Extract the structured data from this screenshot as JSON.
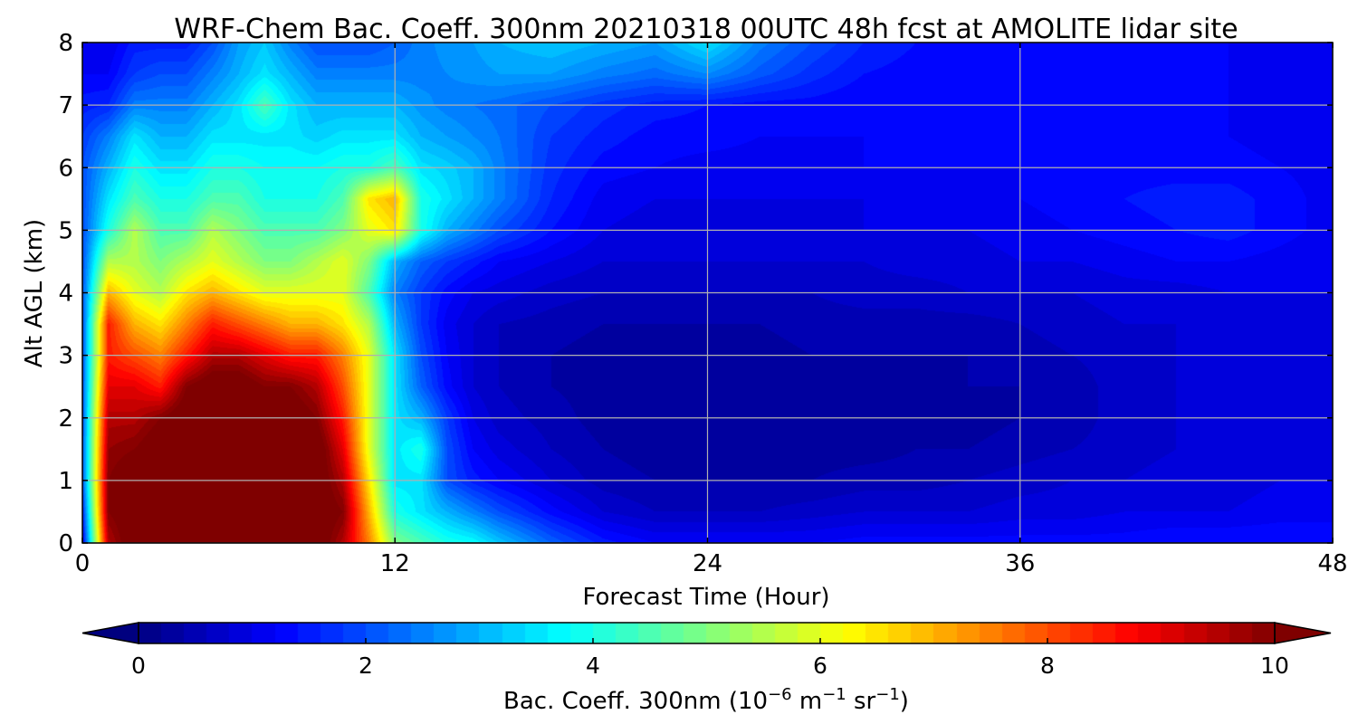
{
  "chart_data": {
    "type": "heatmap",
    "title": "WRF-Chem Bac. Coeff. 300nm  20210318 00UTC 48h fcst at AMOLITE lidar site",
    "xlabel": "Forecast Time (Hour)",
    "ylabel": "Alt AGL (km)",
    "xlim": [
      0,
      48
    ],
    "ylim": [
      0,
      8
    ],
    "xticks": [
      "0",
      "12",
      "24",
      "36",
      "48"
    ],
    "yticks": [
      "0",
      "1",
      "2",
      "3",
      "4",
      "5",
      "6",
      "7",
      "8"
    ],
    "grid": true,
    "colormap": "jet",
    "colorbar": {
      "orientation": "horizontal",
      "placement": "bottom",
      "range": [
        0,
        10
      ],
      "ticks": [
        "0",
        "2",
        "4",
        "6",
        "8",
        "10"
      ],
      "extend": "both",
      "label_main": "Bac. Coeff. 300nm  (10",
      "label_exp1": "−6",
      "label_mid1": " m",
      "label_exp2": "−1",
      "label_mid2": " sr",
      "label_exp3": "−1",
      "label_end": ")"
    },
    "x": [
      0,
      1,
      2,
      3,
      4,
      5,
      6,
      7,
      8,
      9,
      10,
      11,
      12,
      13,
      14,
      15,
      16,
      18,
      20,
      22,
      24,
      26,
      28,
      30,
      32,
      34,
      36,
      38,
      40,
      42,
      44,
      46,
      48
    ],
    "y": [
      0,
      0.5,
      1,
      1.5,
      2,
      2.5,
      3,
      3.5,
      4,
      4.5,
      5,
      5.5,
      6,
      6.5,
      7,
      7.5,
      8
    ],
    "z": [
      [
        1.0,
        9.5,
        10.5,
        10.5,
        10.5,
        10.5,
        10.5,
        10.5,
        10.5,
        10.5,
        9.5,
        7.5,
        5.0,
        4.5,
        4.0,
        3.8,
        3.2,
        2.2,
        1.5,
        1.2,
        1.2,
        1.2,
        1.2,
        1.3,
        1.3,
        1.3,
        1.3,
        1.3,
        1.3,
        1.4,
        1.4,
        1.4,
        1.4
      ],
      [
        1.5,
        10.0,
        10.5,
        10.5,
        10.5,
        10.5,
        10.5,
        10.5,
        10.5,
        10.5,
        10.0,
        7.0,
        4.0,
        3.5,
        3.0,
        2.5,
        2.0,
        1.3,
        0.8,
        0.6,
        0.6,
        0.6,
        0.7,
        0.8,
        0.8,
        0.8,
        0.9,
        0.9,
        1.0,
        1.0,
        1.0,
        1.1,
        1.1
      ],
      [
        2.0,
        10.0,
        10.5,
        10.5,
        10.5,
        10.5,
        10.5,
        10.5,
        10.5,
        10.5,
        9.5,
        6.5,
        3.5,
        3.5,
        2.0,
        1.5,
        1.2,
        0.8,
        0.5,
        0.4,
        0.4,
        0.4,
        0.4,
        0.5,
        0.5,
        0.6,
        0.7,
        0.8,
        0.8,
        0.9,
        0.9,
        1.0,
        1.0
      ],
      [
        2.0,
        9.8,
        10.0,
        10.5,
        10.5,
        10.5,
        10.5,
        10.5,
        10.5,
        10.5,
        9.0,
        6.0,
        3.5,
        4.0,
        2.0,
        1.2,
        0.9,
        0.6,
        0.4,
        0.3,
        0.3,
        0.3,
        0.3,
        0.3,
        0.4,
        0.4,
        0.5,
        0.6,
        0.7,
        0.8,
        0.9,
        0.9,
        1.0
      ],
      [
        2.0,
        9.5,
        9.5,
        10.0,
        10.5,
        10.5,
        10.5,
        10.5,
        10.5,
        10.0,
        8.5,
        6.0,
        3.5,
        3.0,
        1.8,
        1.0,
        0.7,
        0.5,
        0.3,
        0.2,
        0.2,
        0.2,
        0.2,
        0.2,
        0.3,
        0.3,
        0.4,
        0.5,
        0.7,
        0.8,
        0.9,
        0.9,
        1.0
      ],
      [
        2.0,
        9.0,
        9.0,
        8.5,
        10.0,
        10.5,
        10.5,
        10.0,
        10.0,
        9.5,
        8.0,
        6.0,
        3.5,
        2.2,
        1.3,
        0.8,
        0.6,
        0.4,
        0.3,
        0.3,
        0.2,
        0.2,
        0.3,
        0.3,
        0.3,
        0.4,
        0.4,
        0.5,
        0.7,
        0.8,
        0.9,
        0.9,
        1.0
      ],
      [
        2.0,
        8.5,
        8.0,
        7.5,
        8.5,
        9.5,
        9.5,
        9.0,
        8.5,
        8.5,
        7.5,
        6.0,
        3.5,
        2.0,
        1.2,
        0.8,
        0.6,
        0.4,
        0.3,
        0.3,
        0.3,
        0.3,
        0.4,
        0.4,
        0.4,
        0.4,
        0.5,
        0.6,
        0.7,
        0.8,
        0.9,
        0.9,
        1.0
      ],
      [
        2.0,
        8.5,
        7.0,
        6.5,
        7.5,
        8.5,
        8.0,
        7.5,
        7.0,
        7.0,
        6.5,
        5.5,
        3.0,
        1.8,
        1.1,
        0.8,
        0.6,
        0.5,
        0.4,
        0.4,
        0.4,
        0.4,
        0.5,
        0.5,
        0.5,
        0.5,
        0.6,
        0.7,
        0.8,
        0.8,
        0.9,
        0.9,
        1.0
      ],
      [
        2.0,
        7.0,
        6.0,
        5.5,
        6.5,
        7.0,
        6.5,
        6.0,
        6.0,
        6.0,
        6.0,
        4.5,
        2.5,
        1.8,
        1.3,
        1.0,
        0.9,
        0.7,
        0.6,
        0.6,
        0.6,
        0.6,
        0.6,
        0.7,
        0.7,
        0.8,
        0.8,
        0.8,
        0.9,
        0.9,
        1.0,
        1.0,
        1.0
      ],
      [
        2.0,
        5.5,
        5.5,
        5.0,
        5.5,
        6.0,
        5.5,
        5.0,
        5.0,
        5.5,
        6.0,
        5.0,
        3.0,
        2.2,
        1.8,
        1.5,
        1.2,
        1.0,
        0.8,
        0.8,
        0.8,
        0.8,
        0.8,
        0.8,
        0.9,
        0.9,
        1.0,
        1.0,
        1.1,
        1.2,
        1.2,
        1.1,
        1.0
      ],
      [
        2.0,
        4.0,
        5.5,
        4.5,
        4.5,
        5.5,
        5.0,
        4.5,
        4.5,
        4.5,
        5.0,
        6.0,
        6.5,
        4.0,
        3.0,
        2.5,
        2.0,
        1.4,
        1.0,
        0.9,
        0.9,
        0.9,
        0.9,
        1.0,
        1.0,
        1.0,
        1.1,
        1.2,
        1.3,
        1.4,
        1.5,
        1.3,
        1.1
      ],
      [
        2.0,
        3.5,
        4.5,
        4.0,
        4.0,
        4.5,
        4.5,
        4.0,
        4.0,
        4.0,
        4.5,
        6.5,
        7.0,
        4.0,
        3.5,
        3.0,
        2.5,
        1.6,
        1.1,
        1.0,
        1.0,
        1.0,
        1.0,
        1.0,
        1.1,
        1.1,
        1.2,
        1.3,
        1.4,
        1.5,
        1.5,
        1.3,
        1.1
      ],
      [
        2.0,
        3.0,
        4.0,
        3.5,
        3.5,
        4.0,
        4.0,
        3.8,
        3.8,
        3.8,
        4.0,
        4.0,
        4.5,
        3.5,
        3.3,
        3.0,
        2.5,
        1.7,
        1.3,
        1.2,
        1.1,
        1.1,
        1.1,
        1.2,
        1.2,
        1.2,
        1.2,
        1.3,
        1.3,
        1.3,
        1.3,
        1.2,
        1.1
      ],
      [
        1.8,
        2.5,
        3.5,
        3.0,
        3.0,
        3.5,
        3.5,
        3.5,
        3.5,
        3.3,
        3.5,
        3.5,
        3.5,
        3.0,
        2.8,
        2.6,
        2.4,
        1.8,
        1.5,
        1.3,
        1.3,
        1.2,
        1.2,
        1.2,
        1.2,
        1.2,
        1.2,
        1.2,
        1.2,
        1.2,
        1.2,
        1.1,
        1.1
      ],
      [
        1.5,
        1.6,
        2.5,
        2.5,
        2.5,
        3.0,
        3.5,
        4.5,
        3.5,
        3.0,
        3.0,
        3.0,
        3.0,
        2.7,
        2.5,
        2.4,
        2.3,
        2.0,
        1.7,
        1.5,
        1.4,
        1.3,
        1.3,
        1.2,
        1.2,
        1.2,
        1.2,
        1.2,
        1.2,
        1.2,
        1.2,
        1.1,
        1.1
      ],
      [
        1.2,
        1.2,
        1.8,
        2.0,
        2.0,
        2.5,
        3.0,
        3.5,
        3.0,
        2.5,
        2.5,
        2.5,
        2.5,
        2.5,
        2.6,
        2.7,
        2.8,
        2.8,
        2.5,
        2.3,
        2.6,
        2.1,
        1.7,
        1.4,
        1.3,
        1.2,
        1.2,
        1.2,
        1.2,
        1.2,
        1.2,
        1.1,
        1.1
      ],
      [
        1.0,
        1.0,
        1.5,
        1.5,
        1.5,
        2.0,
        2.8,
        3.2,
        2.5,
        2.0,
        2.0,
        2.0,
        2.2,
        2.5,
        2.7,
        2.8,
        3.0,
        3.2,
        3.0,
        2.8,
        3.5,
        2.5,
        2.0,
        1.6,
        1.4,
        1.2,
        1.2,
        1.2,
        1.2,
        1.2,
        1.2,
        1.1,
        1.1
      ]
    ]
  }
}
